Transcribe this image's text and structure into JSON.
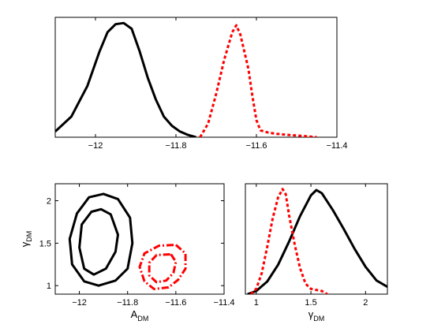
{
  "chart_data": [
    {
      "id": "top",
      "type": "line",
      "title": "",
      "xlabel": "",
      "ylabel": "",
      "xlim": [
        -12.1,
        -11.4
      ],
      "ylim": [
        0,
        1.05
      ],
      "xticks": [
        -12,
        -11.8,
        -11.6,
        -11.4
      ],
      "xtick_labels": [
        "−12",
        "−11.8",
        "−11.6",
        "−11.4"
      ],
      "yticks": [],
      "series": [
        {
          "color": "#000000",
          "style": "solid",
          "x": [
            -12.1,
            -12.06,
            -12.02,
            -11.99,
            -11.97,
            -11.95,
            -11.93,
            -11.91,
            -11.89,
            -11.87,
            -11.85,
            -11.83,
            -11.81,
            -11.79,
            -11.77,
            -11.75
          ],
          "y": [
            0.05,
            0.18,
            0.45,
            0.75,
            0.92,
            0.99,
            1.0,
            0.95,
            0.75,
            0.52,
            0.33,
            0.18,
            0.1,
            0.05,
            0.02,
            0.0
          ]
        },
        {
          "color": "#ff0000",
          "style": "dotted",
          "x": [
            -11.74,
            -11.72,
            -11.7,
            -11.68,
            -11.66,
            -11.65,
            -11.64,
            -11.62,
            -11.61,
            -11.6,
            -11.59,
            -11.57,
            -11.55,
            -11.52,
            -11.48,
            -11.45
          ],
          "y": [
            0.0,
            0.12,
            0.38,
            0.68,
            0.92,
            0.98,
            0.9,
            0.6,
            0.36,
            0.15,
            0.06,
            0.04,
            0.03,
            0.02,
            0.01,
            0.0
          ]
        }
      ]
    },
    {
      "id": "bottom-left",
      "type": "line",
      "title": "",
      "xlabel": "A",
      "xlabel_sub": "DM",
      "ylabel": "γ",
      "ylabel_sub": "DM",
      "xlim": [
        -12.1,
        -11.4
      ],
      "ylim": [
        0.9,
        2.2
      ],
      "xticks": [
        -12,
        -11.8,
        -11.6,
        -11.4
      ],
      "xtick_labels": [
        "−12",
        "−11.8",
        "−11.6",
        "−11.4"
      ],
      "yticks": [
        1,
        1.5,
        2
      ],
      "ytick_labels": [
        "1",
        "1.5",
        "2"
      ],
      "series": [
        {
          "color": "#000000",
          "style": "solid",
          "closed": true,
          "x": [
            -11.9,
            -11.84,
            -11.79,
            -11.78,
            -11.8,
            -11.85,
            -11.92,
            -11.98,
            -12.03,
            -12.04,
            -12.01,
            -11.96
          ],
          "y": [
            2.08,
            2.02,
            1.8,
            1.5,
            1.2,
            1.06,
            1.0,
            1.05,
            1.25,
            1.55,
            1.85,
            2.04
          ]
        },
        {
          "color": "#000000",
          "style": "solid",
          "closed": true,
          "x": [
            -11.91,
            -11.87,
            -11.84,
            -11.85,
            -11.89,
            -11.94,
            -11.98,
            -12.0,
            -11.99,
            -11.95
          ],
          "y": [
            1.9,
            1.84,
            1.6,
            1.4,
            1.2,
            1.13,
            1.2,
            1.45,
            1.72,
            1.87
          ]
        },
        {
          "color": "#ff0000",
          "style": "dashdot",
          "closed": true,
          "x": [
            -11.6,
            -11.56,
            -11.56,
            -11.59,
            -11.63,
            -11.69,
            -11.73,
            -11.75,
            -11.73,
            -11.67
          ],
          "y": [
            1.48,
            1.38,
            1.2,
            1.07,
            0.98,
            0.96,
            1.05,
            1.22,
            1.38,
            1.47
          ]
        },
        {
          "color": "#ff0000",
          "style": "dashdot",
          "closed": true,
          "x": [
            -11.62,
            -11.6,
            -11.61,
            -11.64,
            -11.68,
            -11.71,
            -11.71,
            -11.68
          ],
          "y": [
            1.37,
            1.28,
            1.15,
            1.06,
            1.04,
            1.12,
            1.27,
            1.36
          ]
        }
      ]
    },
    {
      "id": "bottom-right",
      "type": "line",
      "title": "",
      "xlabel": "γ",
      "xlabel_sub": "DM",
      "ylabel": "",
      "xlim": [
        0.9,
        2.2
      ],
      "ylim": [
        0,
        1.05
      ],
      "xticks": [
        1,
        1.5,
        2
      ],
      "xtick_labels": [
        "1",
        "1.5",
        "2"
      ],
      "yticks": [],
      "series": [
        {
          "color": "#000000",
          "style": "solid",
          "x": [
            0.92,
            1.0,
            1.1,
            1.2,
            1.3,
            1.4,
            1.5,
            1.55,
            1.6,
            1.7,
            1.8,
            1.9,
            2.0,
            2.1,
            2.2
          ],
          "y": [
            0.0,
            0.03,
            0.12,
            0.28,
            0.5,
            0.74,
            0.94,
            0.99,
            0.96,
            0.8,
            0.62,
            0.43,
            0.26,
            0.13,
            0.07
          ]
        },
        {
          "color": "#ff0000",
          "style": "dotted",
          "x": [
            0.95,
            1.0,
            1.05,
            1.1,
            1.15,
            1.2,
            1.24,
            1.27,
            1.3,
            1.35,
            1.4,
            1.45,
            1.5,
            1.55,
            1.6,
            1.65
          ],
          "y": [
            0.0,
            0.05,
            0.2,
            0.45,
            0.72,
            0.92,
            1.0,
            0.95,
            0.75,
            0.48,
            0.25,
            0.1,
            0.05,
            0.04,
            0.03,
            0.0
          ]
        }
      ]
    }
  ]
}
